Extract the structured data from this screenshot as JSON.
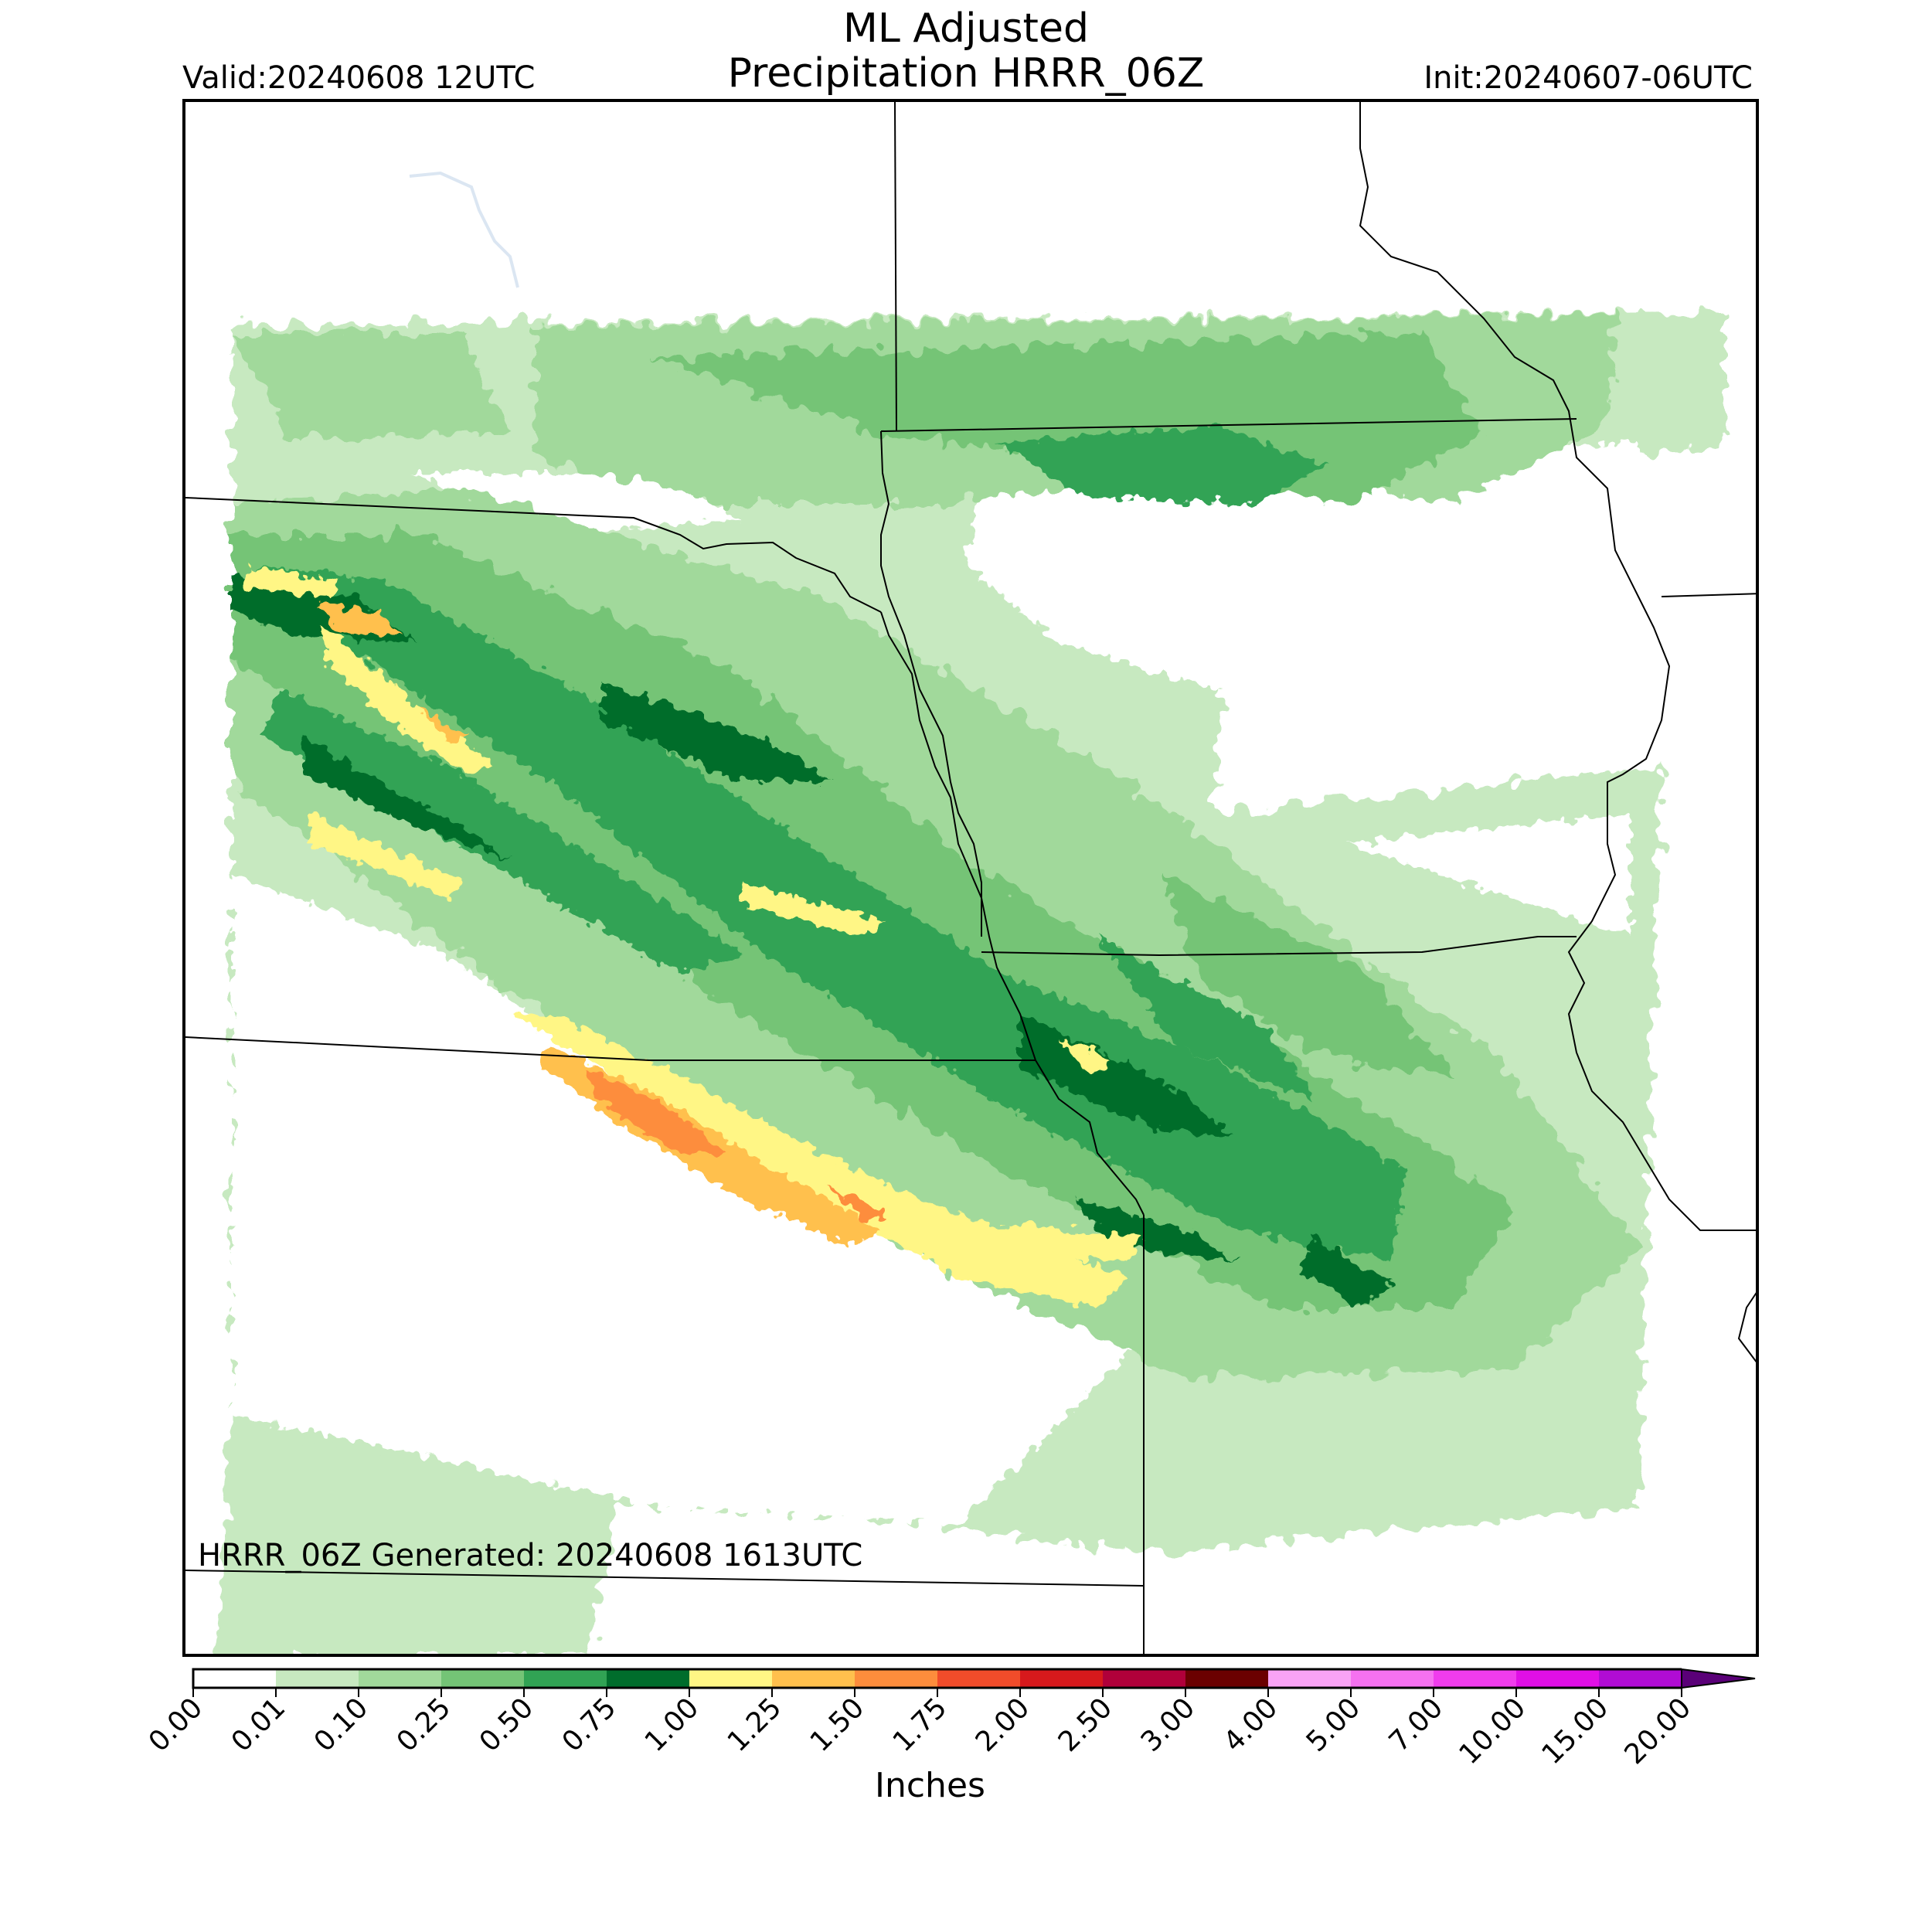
{
  "header": {
    "title_line1": "ML Adjusted",
    "title_line2": "Precipitation HRRR_06Z",
    "valid": "Valid:20240608 12UTC",
    "init": "Init:20240607-06UTC"
  },
  "map": {
    "generated_note": "HRRR_06Z Generated: 20240608 1613UTC",
    "region": "Central Plains (Nebraska, Iowa, Kansas, Missouri)",
    "boundary_color": "#000000"
  },
  "colorbar": {
    "label": "Inches",
    "extend": "max",
    "ticks": [
      "0.00",
      "0.01",
      "0.10",
      "0.25",
      "0.50",
      "0.75",
      "1.00",
      "1.25",
      "1.50",
      "1.75",
      "2.00",
      "2.50",
      "3.00",
      "4.00",
      "5.00",
      "7.00",
      "10.00",
      "15.00",
      "20.00"
    ],
    "colors": [
      "#ffffff",
      "#c7e9c0",
      "#a1d99b",
      "#74c476",
      "#31a354",
      "#006d2c",
      "#fff685",
      "#ffc04d",
      "#fd8d3c",
      "#f14c2a",
      "#d7191c",
      "#b0003a",
      "#6b0000",
      "#f9a3f5",
      "#f571f0",
      "#f03ced",
      "#e00fe6",
      "#b00cd4",
      "#8a00c0"
    ],
    "arrow_color": "#5a0078"
  }
}
